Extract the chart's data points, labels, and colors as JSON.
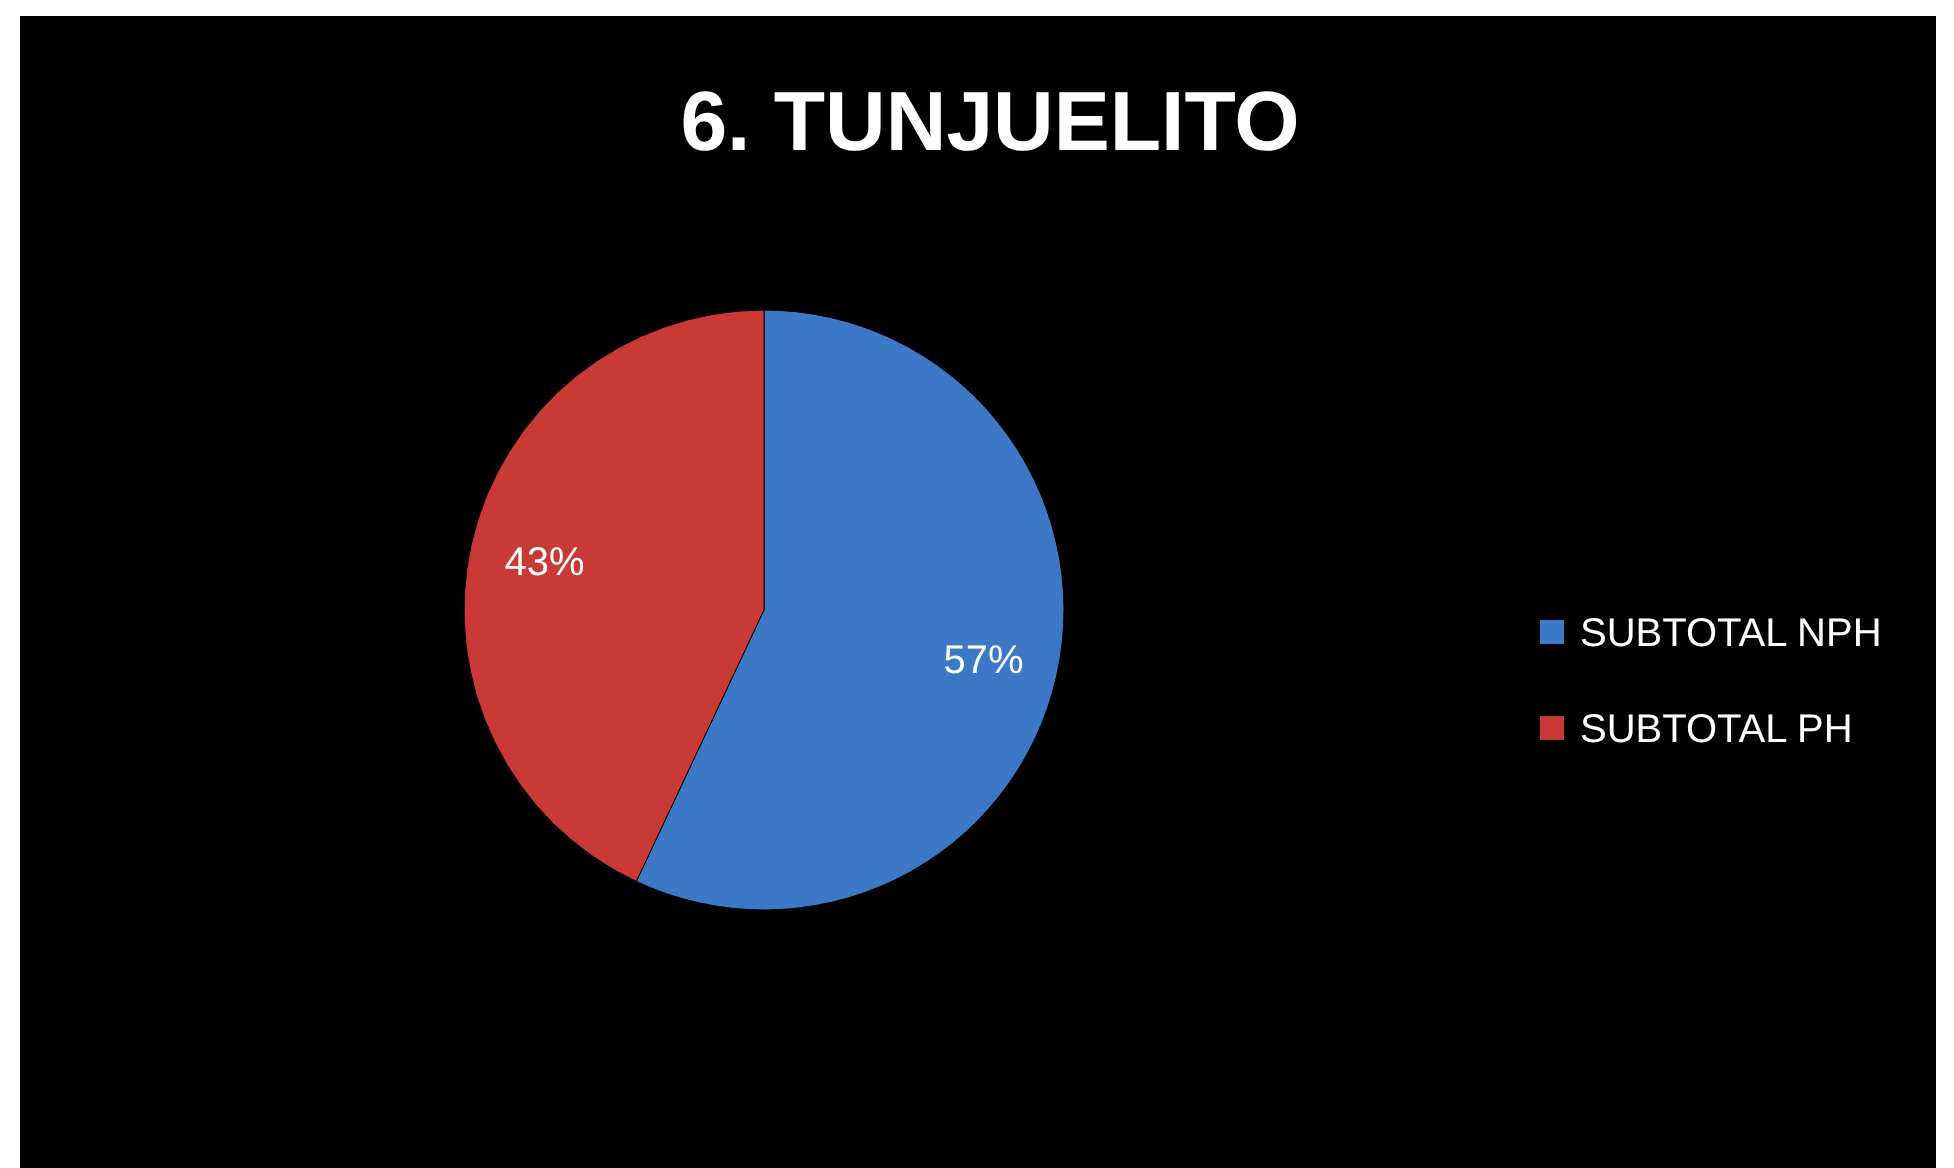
{
  "chart_data": {
    "type": "pie",
    "title": "6. TUNJUELITO",
    "categories": [
      "SUBTOTAL NPH",
      "SUBTOTAL PH"
    ],
    "values": [
      57,
      43
    ],
    "colors": [
      "#3b78c6",
      "#c93a37"
    ],
    "value_labels": [
      "57%",
      "43%"
    ],
    "legend": "right"
  }
}
